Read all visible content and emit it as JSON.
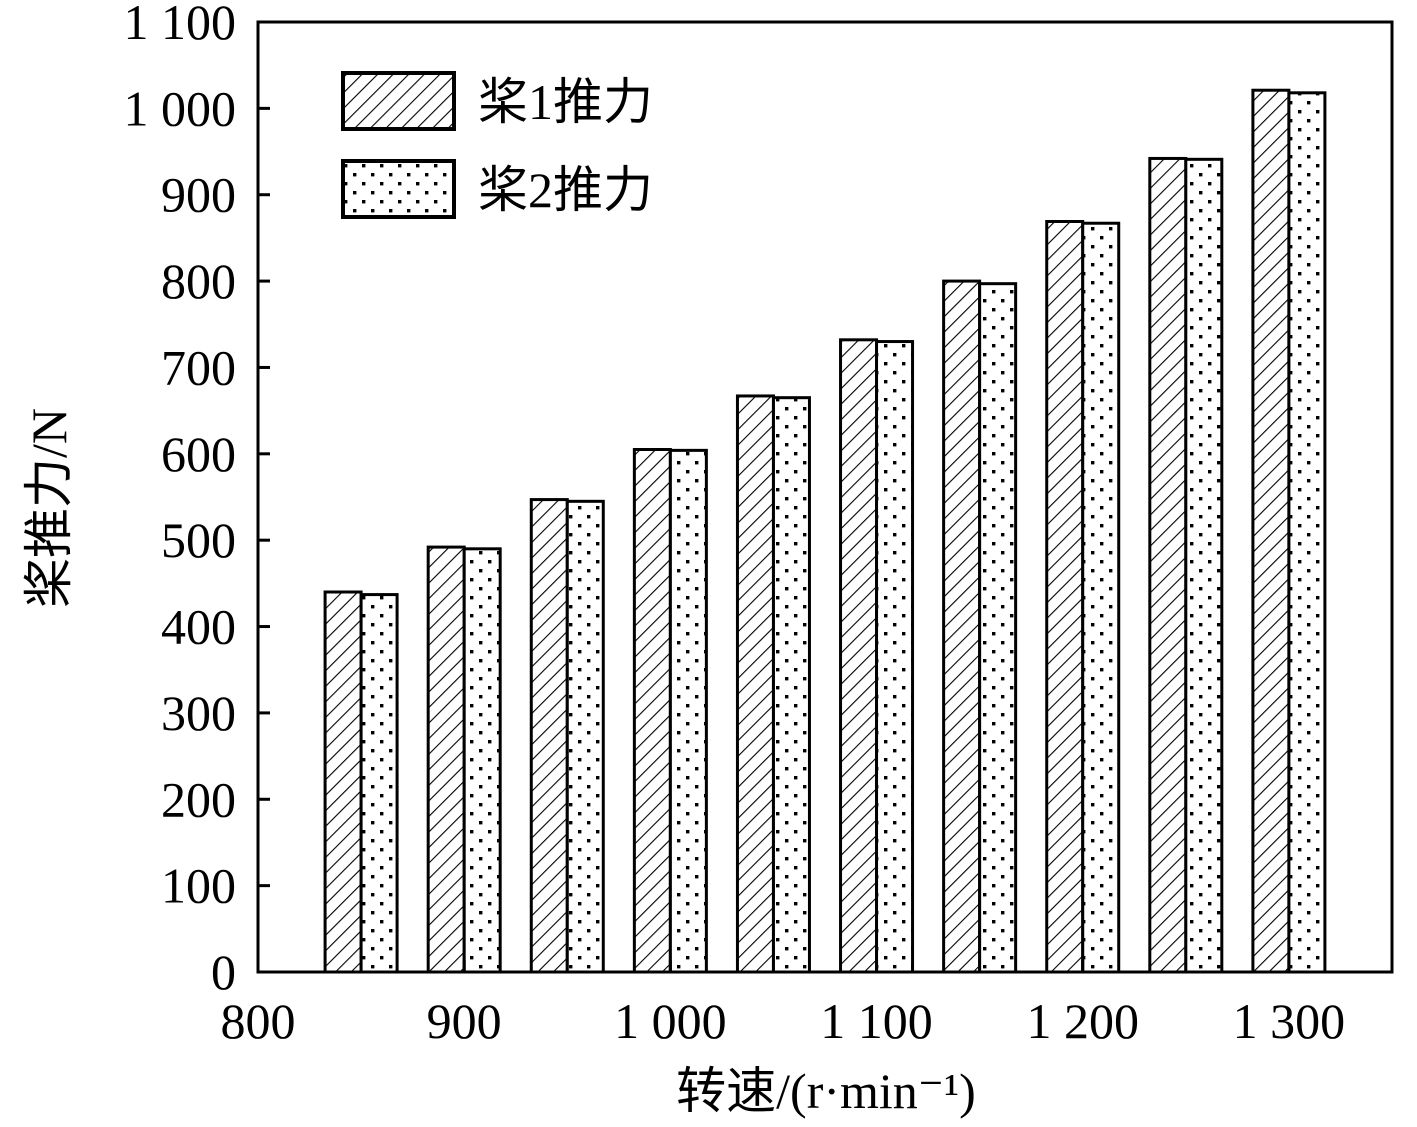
{
  "chart_data": {
    "type": "bar",
    "xlabel": "转速/(r·min⁻¹)",
    "ylabel": "桨推力/N",
    "xlim": [
      800,
      1350
    ],
    "ylim": [
      0,
      1100
    ],
    "x_ticks": [
      "800",
      "900",
      "1 000",
      "1 100",
      "1 200",
      "1 300"
    ],
    "x_tick_values": [
      800,
      900,
      1000,
      1100,
      1200,
      1300
    ],
    "y_ticks": [
      "0",
      "100",
      "200",
      "300",
      "400",
      "500",
      "600",
      "700",
      "800",
      "900",
      "1 000",
      "1 100"
    ],
    "y_tick_values": [
      0,
      100,
      200,
      300,
      400,
      500,
      600,
      700,
      800,
      900,
      1000,
      1100
    ],
    "x": [
      850,
      900,
      950,
      1000,
      1050,
      1100,
      1150,
      1200,
      1250,
      1300
    ],
    "series": [
      {
        "name": "桨1推力",
        "pattern": "hatch",
        "values": [
          440,
          492,
          547,
          605,
          667,
          732,
          800,
          869,
          942,
          1021
        ]
      },
      {
        "name": "桨2推力",
        "pattern": "dots",
        "values": [
          437,
          490,
          545,
          604,
          665,
          730,
          797,
          867,
          941,
          1018
        ]
      }
    ],
    "legend_position": "top-left",
    "grid": false
  }
}
